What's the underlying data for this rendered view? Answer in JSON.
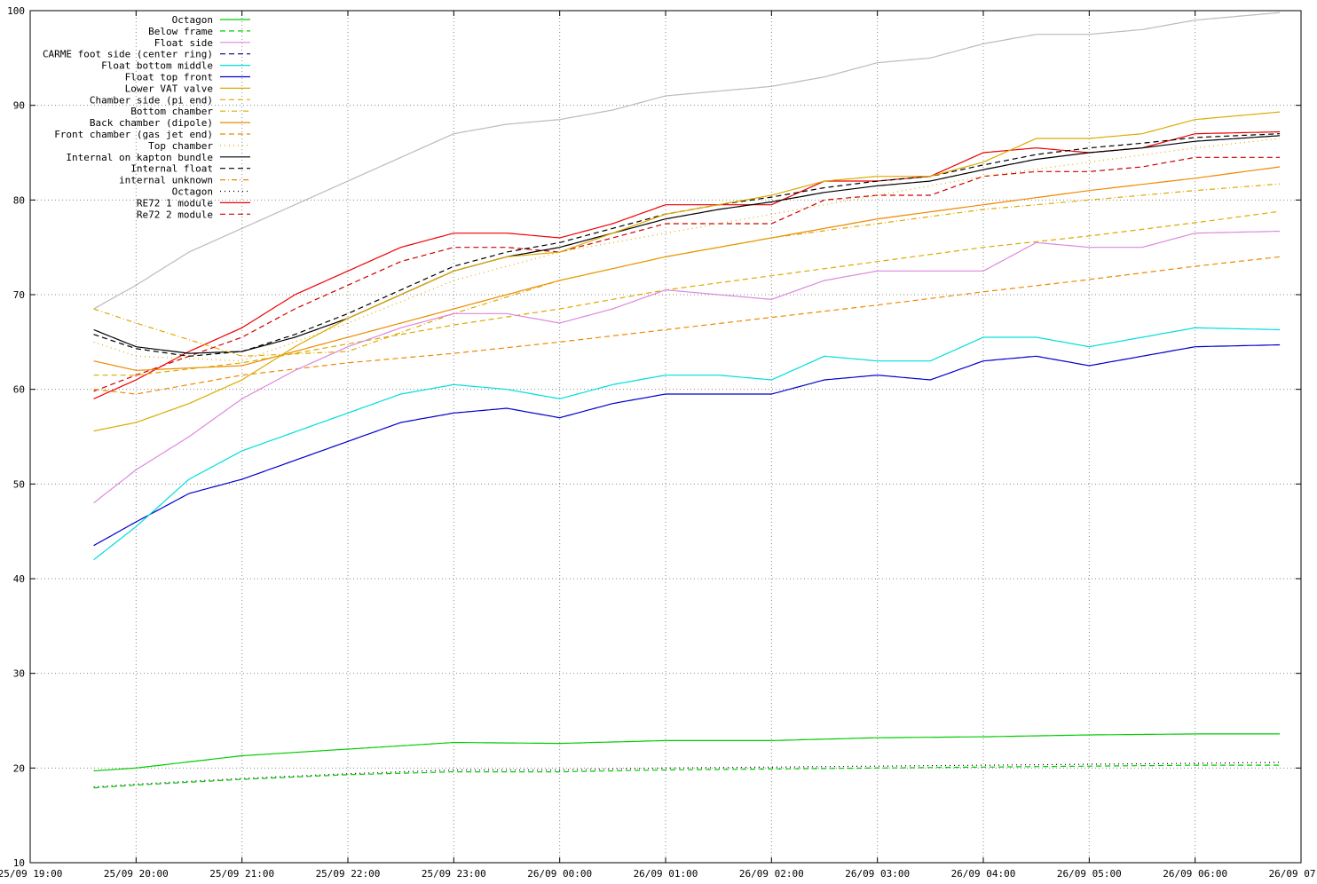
{
  "chart_data": {
    "type": "line",
    "title": "",
    "xlabel": "",
    "ylabel": "",
    "ylim": [
      10,
      100
    ],
    "yticks": [
      10,
      20,
      30,
      40,
      50,
      60,
      70,
      80,
      90,
      100
    ],
    "xlim": [
      "25/09 19:00",
      "26/09 07:00"
    ],
    "xticks": [
      "25/09 19:00",
      "25/09 20:00",
      "25/09 21:00",
      "25/09 22:00",
      "25/09 23:00",
      "26/09 00:00",
      "26/09 01:00",
      "26/09 02:00",
      "26/09 03:00",
      "26/09 04:00",
      "26/09 05:00",
      "26/09 06:00",
      "26/09 07:00"
    ],
    "grid": true,
    "legend_position": "top-left",
    "series": [
      {
        "name": "Octagon",
        "color": "#00cc00",
        "dash": "solid",
        "x": [
          "25/09 19:36",
          "25/09 20:00",
          "25/09 21:00",
          "25/09 22:00",
          "25/09 23:00",
          "26/09 00:00",
          "26/09 01:00",
          "26/09 02:00",
          "26/09 03:00",
          "26/09 04:00",
          "26/09 05:00",
          "26/09 06:00",
          "26/09 06:48"
        ],
        "values": [
          19.7,
          20.0,
          21.3,
          22.0,
          22.7,
          22.6,
          22.9,
          22.9,
          23.2,
          23.3,
          23.5,
          23.6,
          23.6
        ]
      },
      {
        "name": "Below frame",
        "color": "#00cc00",
        "dash": "dashed",
        "x": [
          "25/09 19:36",
          "25/09 20:00",
          "25/09 21:00",
          "25/09 22:00",
          "25/09 23:00",
          "26/09 00:00",
          "26/09 01:00",
          "26/09 02:00",
          "26/09 03:00",
          "26/09 04:00",
          "26/09 05:00",
          "26/09 06:00",
          "26/09 06:48"
        ],
        "values": [
          17.9,
          18.2,
          18.8,
          19.3,
          19.6,
          19.6,
          19.8,
          19.9,
          20.0,
          20.1,
          20.2,
          20.3,
          20.3
        ]
      },
      {
        "name": "Float side",
        "color": "#dd88dd",
        "dash": "solid",
        "x": [
          "25/09 19:36",
          "25/09 20:00",
          "25/09 20:30",
          "25/09 21:00",
          "25/09 21:30",
          "25/09 22:00",
          "25/09 22:30",
          "25/09 23:00",
          "25/09 23:30",
          "26/09 00:00",
          "26/09 00:30",
          "26/09 01:00",
          "26/09 01:30",
          "26/09 02:00",
          "26/09 02:30",
          "26/09 03:00",
          "26/09 03:30",
          "26/09 04:00",
          "26/09 04:30",
          "26/09 05:00",
          "26/09 05:30",
          "26/09 06:00",
          "26/09 06:48"
        ],
        "values": [
          48.0,
          51.5,
          55.0,
          59.0,
          62.0,
          64.5,
          66.5,
          68.0,
          68.0,
          67.0,
          68.5,
          70.5,
          70.0,
          69.5,
          71.5,
          72.5,
          72.5,
          72.5,
          75.5,
          75.0,
          75.0,
          76.5,
          76.7
        ]
      },
      {
        "name": "CARME foot side (center ring)",
        "color": "#000080",
        "dash": "dashed",
        "x": [],
        "values": []
      },
      {
        "name": "Float bottom middle",
        "color": "#00dddd",
        "dash": "solid",
        "x": [
          "25/09 19:36",
          "25/09 20:00",
          "25/09 20:30",
          "25/09 21:00",
          "25/09 21:30",
          "25/09 22:00",
          "25/09 22:30",
          "25/09 23:00",
          "25/09 23:30",
          "26/09 00:00",
          "26/09 00:30",
          "26/09 01:00",
          "26/09 01:30",
          "26/09 02:00",
          "26/09 02:30",
          "26/09 03:00",
          "26/09 03:30",
          "26/09 04:00",
          "26/09 04:30",
          "26/09 05:00",
          "26/09 05:30",
          "26/09 06:00",
          "26/09 06:48"
        ],
        "values": [
          42.0,
          45.5,
          50.5,
          53.5,
          55.5,
          57.5,
          59.5,
          60.5,
          60.0,
          59.0,
          60.5,
          61.5,
          61.5,
          61.0,
          63.5,
          63.0,
          63.0,
          65.5,
          65.5,
          64.5,
          65.5,
          66.5,
          66.3
        ]
      },
      {
        "name": "Float top front",
        "color": "#0000cc",
        "dash": "solid",
        "x": [
          "25/09 19:36",
          "25/09 20:00",
          "25/09 20:30",
          "25/09 21:00",
          "25/09 21:30",
          "25/09 22:00",
          "25/09 22:30",
          "25/09 23:00",
          "25/09 23:30",
          "26/09 00:00",
          "26/09 00:30",
          "26/09 01:00",
          "26/09 01:30",
          "26/09 02:00",
          "26/09 02:30",
          "26/09 03:00",
          "26/09 03:30",
          "26/09 04:00",
          "26/09 04:30",
          "26/09 05:00",
          "26/09 05:30",
          "26/09 06:00",
          "26/09 06:48"
        ],
        "values": [
          43.5,
          46.0,
          49.0,
          50.5,
          52.5,
          54.5,
          56.5,
          57.5,
          58.0,
          57.0,
          58.5,
          59.5,
          59.5,
          59.5,
          61.0,
          61.5,
          61.0,
          63.0,
          63.5,
          62.5,
          63.5,
          64.5,
          64.7
        ]
      },
      {
        "name": "Lower VAT valve",
        "color": "#ddaa00",
        "dash": "solid",
        "x": [
          "25/09 19:36",
          "25/09 20:00",
          "25/09 20:30",
          "25/09 21:00",
          "25/09 21:30",
          "25/09 22:00",
          "25/09 22:30",
          "25/09 23:00",
          "25/09 23:30",
          "26/09 00:00",
          "26/09 00:30",
          "26/09 01:00",
          "26/09 01:30",
          "26/09 02:00",
          "26/09 02:30",
          "26/09 03:00",
          "26/09 03:30",
          "26/09 04:00",
          "26/09 04:30",
          "26/09 05:00",
          "26/09 05:30",
          "26/09 06:00",
          "26/09 06:48"
        ],
        "values": [
          55.6,
          56.5,
          58.5,
          61.0,
          64.5,
          67.5,
          70.0,
          72.5,
          74.0,
          74.5,
          76.5,
          78.5,
          79.5,
          80.5,
          82.0,
          82.5,
          82.5,
          84.0,
          86.5,
          86.5,
          87.0,
          88.5,
          89.3
        ]
      },
      {
        "name": "Chamber side (pi end)",
        "color": "#ddaa00",
        "dash": "dashed",
        "x": [
          "25/09 19:36",
          "25/09 20:00",
          "25/09 21:00",
          "25/09 22:00",
          "25/09 23:00",
          "26/09 00:00",
          "26/09 01:00",
          "26/09 02:00",
          "26/09 03:00",
          "26/09 04:00",
          "26/09 05:00",
          "26/09 06:00",
          "26/09 06:48"
        ],
        "values": [
          61.5,
          61.5,
          62.8,
          64.8,
          66.8,
          68.5,
          70.5,
          72.0,
          73.5,
          75.0,
          76.2,
          77.6,
          78.8
        ]
      },
      {
        "name": "Bottom chamber",
        "color": "#ddaa00",
        "dash": "dotdash",
        "x": [
          "25/09 19:36",
          "25/09 20:00",
          "25/09 21:00",
          "25/09 22:00",
          "25/09 23:00",
          "26/09 00:00",
          "26/09 01:00",
          "26/09 02:00",
          "26/09 03:00",
          "26/09 04:00",
          "26/09 05:00",
          "26/09 06:00",
          "26/09 06:48"
        ],
        "values": [
          68.5,
          67.0,
          63.5,
          64.0,
          68.0,
          71.5,
          74.0,
          76.0,
          77.5,
          79.0,
          80.0,
          81.0,
          81.7
        ]
      },
      {
        "name": "Back chamber (dipole)",
        "color": "#ee8800",
        "dash": "solid",
        "x": [
          "25/09 19:36",
          "25/09 20:00",
          "25/09 21:00",
          "25/09 22:00",
          "25/09 23:00",
          "26/09 00:00",
          "26/09 01:00",
          "26/09 02:00",
          "26/09 03:00",
          "26/09 04:00",
          "26/09 05:00",
          "26/09 06:00",
          "26/09 06:48"
        ],
        "values": [
          63.0,
          62.0,
          62.5,
          65.5,
          68.5,
          71.5,
          74.0,
          76.0,
          78.0,
          79.5,
          81.0,
          82.3,
          83.5
        ]
      },
      {
        "name": "Front chamber (gas jet end)",
        "color": "#ee8800",
        "dash": "dashed",
        "x": [
          "25/09 19:36",
          "25/09 20:00",
          "25/09 21:00",
          "25/09 22:00",
          "25/09 23:00",
          "26/09 00:00",
          "26/09 01:00",
          "26/09 02:00",
          "26/09 03:00",
          "26/09 04:00",
          "26/09 05:00",
          "26/09 06:00",
          "26/09 06:48"
        ],
        "values": [
          60.0,
          59.5,
          61.5,
          62.8,
          63.8,
          65.0,
          66.3,
          67.6,
          68.9,
          70.3,
          71.6,
          73.0,
          74.0
        ]
      },
      {
        "name": "Top chamber",
        "color": "#ddaa00",
        "dash": "dotted",
        "x": [
          "25/09 19:36",
          "25/09 20:00",
          "25/09 21:00",
          "25/09 22:00",
          "25/09 23:00",
          "26/09 00:00",
          "26/09 01:00",
          "26/09 02:00",
          "26/09 03:00",
          "26/09 04:00",
          "26/09 05:00",
          "26/09 06:00",
          "26/09 06:48"
        ],
        "values": [
          65.0,
          63.5,
          63.0,
          67.0,
          71.5,
          74.5,
          76.5,
          78.5,
          80.5,
          82.5,
          84.0,
          85.5,
          86.5
        ]
      },
      {
        "name": "Internal on kapton bundle",
        "color": "#000000",
        "dash": "solid",
        "x": [
          "25/09 19:36",
          "25/09 20:00",
          "25/09 20:30",
          "25/09 21:00",
          "25/09 21:30",
          "25/09 22:00",
          "25/09 22:30",
          "25/09 23:00",
          "25/09 23:30",
          "26/09 00:00",
          "26/09 00:30",
          "26/09 01:00",
          "26/09 01:30",
          "26/09 02:00",
          "26/09 02:30",
          "26/09 03:00",
          "26/09 03:30",
          "26/09 04:00",
          "26/09 04:30",
          "26/09 05:00",
          "26/09 05:30",
          "26/09 06:00",
          "26/09 06:48"
        ],
        "values": [
          66.3,
          64.5,
          63.8,
          64.0,
          65.5,
          67.5,
          70.0,
          72.5,
          74.0,
          75.0,
          76.5,
          78.0,
          79.0,
          79.8,
          80.8,
          81.5,
          82.0,
          83.2,
          84.3,
          85.0,
          85.5,
          86.2,
          86.8
        ]
      },
      {
        "name": "Internal float",
        "color": "#000000",
        "dash": "dashed",
        "x": [
          "25/09 19:36",
          "25/09 20:00",
          "25/09 20:30",
          "25/09 21:00",
          "25/09 21:30",
          "25/09 22:00",
          "25/09 22:30",
          "25/09 23:00",
          "25/09 23:30",
          "26/09 00:00",
          "26/09 00:30",
          "26/09 01:00",
          "26/09 01:30",
          "26/09 02:00",
          "26/09 02:30",
          "26/09 03:00",
          "26/09 03:30",
          "26/09 04:00",
          "26/09 04:30",
          "26/09 05:00",
          "26/09 05:30",
          "26/09 06:00",
          "26/09 06:48"
        ],
        "values": [
          65.8,
          64.3,
          63.5,
          64.0,
          65.8,
          68.0,
          70.5,
          73.0,
          74.5,
          75.5,
          77.0,
          78.5,
          79.5,
          80.3,
          81.3,
          82.0,
          82.5,
          83.7,
          84.8,
          85.5,
          86.0,
          86.6,
          87.0
        ]
      },
      {
        "name": "internal unknown",
        "color": "#ee8800",
        "dash": "dotdash",
        "x": [],
        "values": []
      },
      {
        "name": "Octagon",
        "color": "#000000",
        "dash": "dotted",
        "x": [
          "25/09 19:36",
          "25/09 20:00",
          "25/09 21:00",
          "25/09 22:00",
          "25/09 23:00",
          "26/09 00:00",
          "26/09 01:00",
          "26/09 02:00",
          "26/09 03:00",
          "26/09 04:00",
          "26/09 05:00",
          "26/09 06:00",
          "26/09 06:48"
        ],
        "values": [
          18.0,
          18.3,
          18.9,
          19.4,
          19.8,
          19.8,
          20.0,
          20.1,
          20.2,
          20.3,
          20.4,
          20.5,
          20.6
        ]
      },
      {
        "name": "RE72 1 module",
        "color": "#ee0000",
        "dash": "solid",
        "x": [
          "25/09 19:36",
          "25/09 20:00",
          "25/09 20:30",
          "25/09 21:00",
          "25/09 21:30",
          "25/09 22:00",
          "25/09 22:30",
          "25/09 23:00",
          "25/09 23:30",
          "26/09 00:00",
          "26/09 00:30",
          "26/09 01:00",
          "26/09 01:30",
          "26/09 02:00",
          "26/09 02:30",
          "26/09 03:00",
          "26/09 03:30",
          "26/09 04:00",
          "26/09 04:30",
          "26/09 05:00",
          "26/09 05:30",
          "26/09 06:00",
          "26/09 06:48"
        ],
        "values": [
          59.0,
          61.0,
          64.0,
          66.5,
          70.0,
          72.5,
          75.0,
          76.5,
          76.5,
          76.0,
          77.5,
          79.5,
          79.5,
          79.5,
          82.0,
          82.0,
          82.5,
          85.0,
          85.5,
          85.0,
          85.5,
          87.0,
          87.2
        ]
      },
      {
        "name": "Re72 2 module",
        "color": "#cc0000",
        "dash": "dashed",
        "x": [
          "25/09 19:36",
          "25/09 20:00",
          "25/09 20:30",
          "25/09 21:00",
          "25/09 21:30",
          "25/09 22:00",
          "25/09 22:30",
          "25/09 23:00",
          "25/09 23:30",
          "26/09 00:00",
          "26/09 00:30",
          "26/09 01:00",
          "26/09 01:30",
          "26/09 02:00",
          "26/09 02:30",
          "26/09 03:00",
          "26/09 03:30",
          "26/09 04:00",
          "26/09 04:30",
          "26/09 05:00",
          "26/09 05:30",
          "26/09 06:00",
          "26/09 06:48"
        ],
        "values": [
          59.8,
          61.5,
          63.5,
          65.5,
          68.5,
          71.0,
          73.5,
          75.0,
          75.0,
          74.5,
          76.0,
          77.5,
          77.5,
          77.5,
          80.0,
          80.5,
          80.5,
          82.5,
          83.0,
          83.0,
          83.5,
          84.5,
          84.5
        ]
      },
      {
        "name": "",
        "color": "#bbbbbb",
        "dash": "solid",
        "x": [
          "25/09 19:36",
          "25/09 20:00",
          "25/09 20:30",
          "25/09 21:00",
          "25/09 21:30",
          "25/09 22:00",
          "25/09 22:30",
          "25/09 23:00",
          "25/09 23:30",
          "26/09 00:00",
          "26/09 00:30",
          "26/09 01:00",
          "26/09 01:30",
          "26/09 02:00",
          "26/09 02:30",
          "26/09 03:00",
          "26/09 03:30",
          "26/09 04:00",
          "26/09 04:30",
          "26/09 05:00",
          "26/09 05:30",
          "26/09 06:00",
          "26/09 06:48"
        ],
        "values": [
          68.5,
          71.0,
          74.5,
          77.0,
          79.5,
          82.0,
          84.5,
          87.0,
          88.0,
          88.5,
          89.5,
          91.0,
          91.5,
          92.0,
          93.0,
          94.5,
          95.0,
          96.5,
          97.5,
          97.5,
          98.0,
          99.0,
          99.8
        ]
      }
    ]
  }
}
